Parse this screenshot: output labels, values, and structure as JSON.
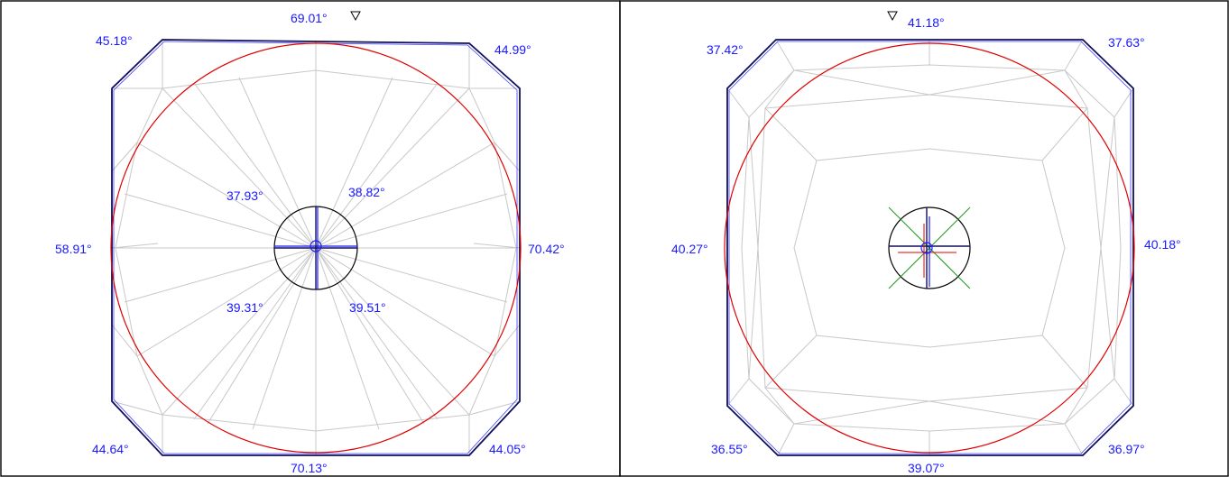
{
  "crown_view": {
    "angles": {
      "top": "69.01°",
      "top_left": "45.18°",
      "top_right": "44.99°",
      "left": "58.91°",
      "right": "70.42°",
      "bottom_left": "44.64°",
      "bottom_right": "44.05°",
      "bottom": "70.13°",
      "inner_top_left": "37.93°",
      "inner_top_right": "38.82°",
      "inner_bottom_left": "39.31°",
      "inner_bottom_right": "39.51°"
    }
  },
  "pavilion_view": {
    "angles": {
      "top": "41.18°",
      "top_left": "37.42°",
      "top_right": "37.63°",
      "left": "40.27°",
      "right": "40.18°",
      "bottom_left": "36.55°",
      "bottom_right": "36.97°",
      "bottom": "39.07°"
    }
  },
  "colors": {
    "label": "#1a1aff",
    "outline": "#10105a",
    "facet_lines": "#c8c8c8",
    "girdle_circle": "#e00000",
    "center_circle": "#000000",
    "axis_green": "#1a9a1a"
  }
}
